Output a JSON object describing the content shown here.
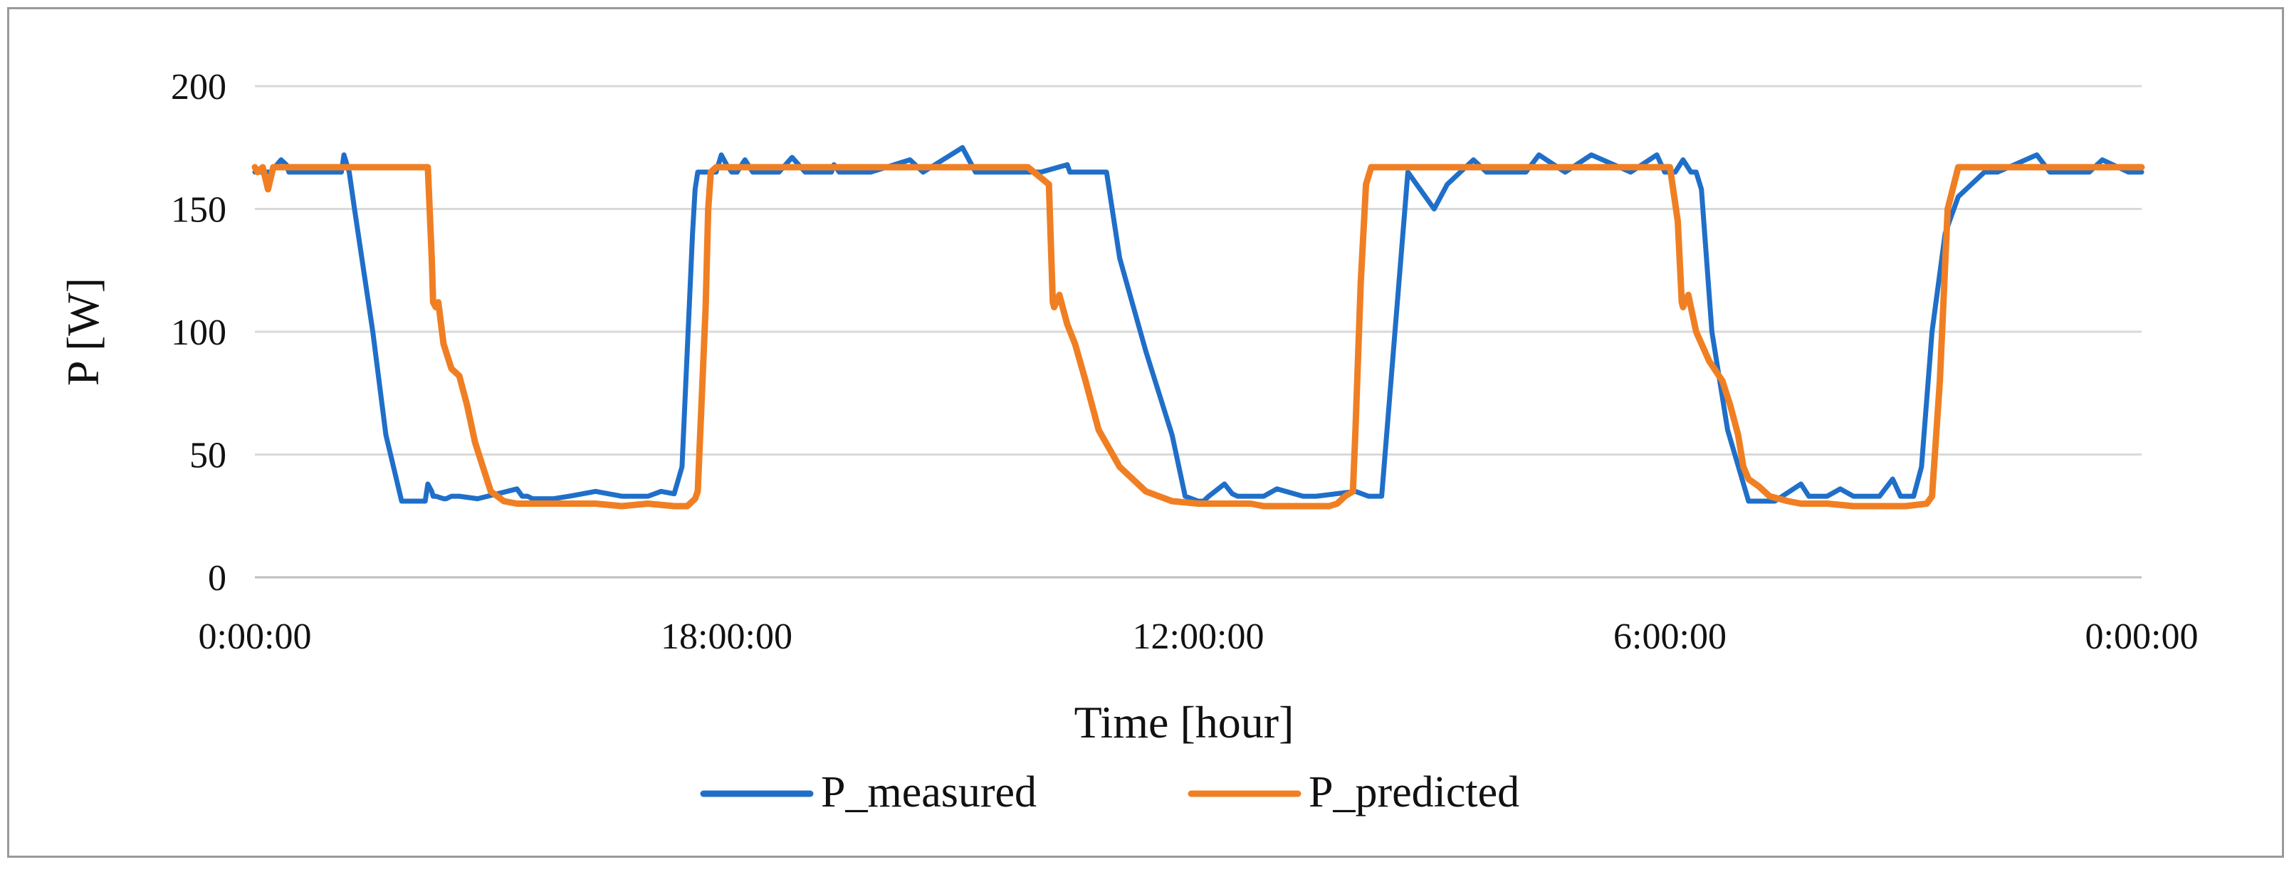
{
  "chart_data": {
    "type": "line",
    "title": "",
    "xlabel": "Time [hour]",
    "ylabel": "P [W]",
    "ylim": [
      0,
      200
    ],
    "yticks": [
      0,
      50,
      100,
      150,
      200
    ],
    "xlim_hours": [
      0,
      72
    ],
    "xtick_labels": [
      "0:00:00",
      "18:00:00",
      "12:00:00",
      "6:00:00",
      "0:00:00"
    ],
    "grid": "horizontal",
    "legend_position": "bottom-center",
    "series": [
      {
        "name": "P_measured",
        "color": "#1f6fc9",
        "x": [
          0,
          0.6,
          1.0,
          1.2,
          1.3,
          1.8,
          3.3,
          3.4,
          3.6,
          3.8,
          4.5,
          5.0,
          5.6,
          6.2,
          6.5,
          6.6,
          6.75,
          6.8,
          6.9,
          7.2,
          7.3,
          7.5,
          7.8,
          8.5,
          10.0,
          10.2,
          10.4,
          10.6,
          10.9,
          11.4,
          12.0,
          13.0,
          14.0,
          15.0,
          15.5,
          16.0,
          16.3,
          16.7,
          16.8,
          16.9,
          17.2,
          17.6,
          17.8,
          18.0,
          18.2,
          18.4,
          18.7,
          19.0,
          19.5,
          20.0,
          20.5,
          21.0,
          22.0,
          22.1,
          22.3,
          23.0,
          23.5,
          25.0,
          25.5,
          27.0,
          27.5,
          29.5,
          29.7,
          30.0,
          31.0,
          31.1,
          31.2,
          31.5,
          32.5,
          33.0,
          34.0,
          35.0,
          35.5,
          36.0,
          36.2,
          36.4,
          37.0,
          37.3,
          37.5,
          38.0,
          38.5,
          39.0,
          40.0,
          40.5,
          42.0,
          42.5,
          43.0,
          44.0,
          45.0,
          45.5,
          46.5,
          47.0,
          48.0,
          48.5,
          49.0,
          50.0,
          51.0,
          52.5,
          53.5,
          53.8,
          54.0,
          54.2,
          54.5,
          54.8,
          55.0,
          55.2,
          55.6,
          56.2,
          57.0,
          57.3,
          58.0,
          59.0,
          59.3,
          60.0,
          60.5,
          61.0,
          62.0,
          62.5,
          62.8,
          63.0,
          63.3,
          63.6,
          64.0,
          64.5,
          65.0,
          65.5,
          66.0,
          66.5,
          68.0,
          68.5,
          70.0,
          70.5,
          71.5,
          72.0
        ],
        "values": [
          165,
          165,
          170,
          168,
          165,
          165,
          165,
          172,
          165,
          150,
          100,
          58,
          31,
          31,
          31,
          38,
          35,
          33,
          33,
          32,
          32,
          33,
          33,
          32,
          36,
          33,
          33,
          32,
          32,
          32,
          33,
          35,
          33,
          33,
          35,
          34,
          45,
          140,
          158,
          165,
          165,
          165,
          172,
          168,
          165,
          165,
          170,
          165,
          165,
          165,
          171,
          165,
          165,
          168,
          165,
          165,
          165,
          170,
          165,
          175,
          165,
          165,
          165,
          165,
          168,
          165,
          165,
          165,
          165,
          130,
          92,
          58,
          33,
          31,
          31,
          33,
          38,
          34,
          33,
          33,
          33,
          36,
          33,
          33,
          35,
          33,
          33,
          165,
          150,
          160,
          170,
          165,
          165,
          165,
          172,
          165,
          172,
          165,
          172,
          165,
          165,
          165,
          170,
          165,
          165,
          158,
          100,
          60,
          31,
          31,
          31,
          38,
          33,
          33,
          36,
          33,
          33,
          40,
          33,
          33,
          33,
          45,
          100,
          140,
          155,
          160,
          165,
          165,
          172,
          165,
          165,
          170,
          165,
          165
        ]
      },
      {
        "name": "P_predicted",
        "color": "#f07f23",
        "x": [
          0,
          0.1,
          0.3,
          0.5,
          0.7,
          1.0,
          6.6,
          6.75,
          6.8,
          6.9,
          7.0,
          7.2,
          7.5,
          7.8,
          8.1,
          8.4,
          8.7,
          9.0,
          9.5,
          10.0,
          11.0,
          12.0,
          13.0,
          14.0,
          15.0,
          16.0,
          16.5,
          16.8,
          16.9,
          17.0,
          17.2,
          17.3,
          17.4,
          17.6,
          18.0,
          19.0,
          29.5,
          30.3,
          30.45,
          30.5,
          30.7,
          31.0,
          31.3,
          31.7,
          32.2,
          33.0,
          34.0,
          35.0,
          36.0,
          37.0,
          38.0,
          38.5,
          39.0,
          40.0,
          41.0,
          41.3,
          41.6,
          41.9,
          42.0,
          42.2,
          42.4,
          42.6,
          54.0,
          54.3,
          54.45,
          54.5,
          54.7,
          55.0,
          55.5,
          56.0,
          56.3,
          56.6,
          56.8,
          57.0,
          57.4,
          57.8,
          58.5,
          59.0,
          60.0,
          61.0,
          62.0,
          63.0,
          63.8,
          64.0,
          64.3,
          64.6,
          65.0,
          66.0,
          72.0
        ],
        "values": [
          167,
          165,
          167,
          158,
          167,
          167,
          167,
          130,
          112,
          110,
          112,
          95,
          85,
          82,
          70,
          55,
          45,
          35,
          31,
          30,
          30,
          30,
          30,
          29,
          30,
          29,
          29,
          32,
          35,
          60,
          110,
          150,
          165,
          167,
          167,
          167,
          167,
          160,
          112,
          110,
          115,
          103,
          95,
          80,
          60,
          45,
          35,
          31,
          30,
          30,
          30,
          29,
          29,
          29,
          29,
          30,
          33,
          35,
          60,
          120,
          160,
          167,
          167,
          145,
          112,
          110,
          115,
          100,
          88,
          80,
          70,
          58,
          45,
          40,
          37,
          33,
          31,
          30,
          30,
          29,
          29,
          29,
          30,
          33,
          80,
          150,
          167,
          167,
          167
        ]
      }
    ]
  }
}
